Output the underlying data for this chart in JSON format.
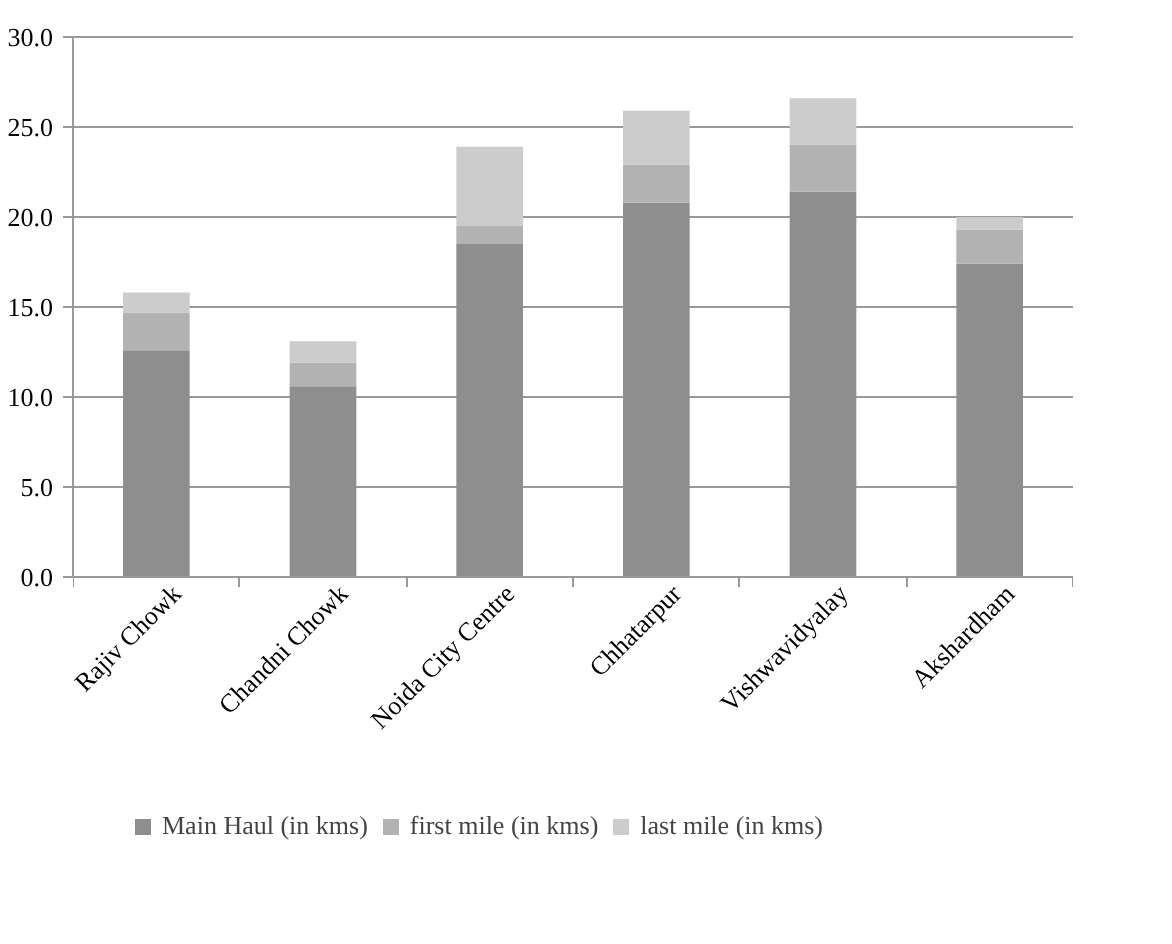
{
  "chart_data": {
    "type": "bar",
    "stacked": true,
    "categories": [
      "Rajiv Chowk",
      "Chandni Chowk",
      "Noida City Centre",
      "Chhatarpur",
      "Vishwavidyalay",
      "Akshardham"
    ],
    "series": [
      {
        "name": "Main Haul (in kms)",
        "color": "#8e8e8e",
        "values": [
          12.6,
          10.6,
          18.5,
          20.8,
          21.4,
          17.4
        ]
      },
      {
        "name": "first mile (in kms)",
        "color": "#b2b2b2",
        "values": [
          2.1,
          1.3,
          1.0,
          2.1,
          2.6,
          1.9
        ]
      },
      {
        "name": "last mile (in kms)",
        "color": "#cccccc",
        "values": [
          1.1,
          1.2,
          4.4,
          3.0,
          2.6,
          0.7
        ]
      }
    ],
    "ylim": [
      0,
      30
    ],
    "yticks": [
      {
        "value": 0,
        "label": "0.0"
      },
      {
        "value": 5,
        "label": "5.0"
      },
      {
        "value": 10,
        "label": "10.0"
      },
      {
        "value": 15,
        "label": "15.0"
      },
      {
        "value": 20,
        "label": "20.0"
      },
      {
        "value": 25,
        "label": "25.0"
      },
      {
        "value": 30,
        "label": "30.0"
      }
    ],
    "grid": "y",
    "legend": "bottom"
  }
}
